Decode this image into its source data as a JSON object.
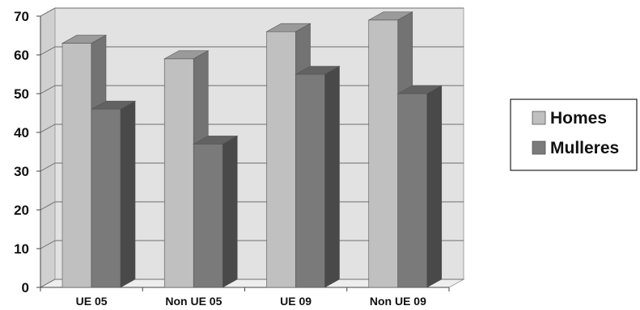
{
  "chart_data": {
    "type": "bar",
    "categories": [
      "UE 05",
      "Non UE 05",
      "UE 09",
      "Non UE 09"
    ],
    "series": [
      {
        "name": "Homes",
        "values": [
          63,
          59,
          66,
          69
        ],
        "color": "#c0c0c0"
      },
      {
        "name": "Mulleres",
        "values": [
          46,
          37,
          55,
          50
        ],
        "color": "#7a7a7a"
      }
    ],
    "ylim": [
      0,
      70
    ],
    "yticks": [
      "0",
      "10",
      "20",
      "30",
      "40",
      "50",
      "60",
      "70"
    ],
    "grid": true,
    "legend_position": "right",
    "style": "3d-clustered"
  }
}
